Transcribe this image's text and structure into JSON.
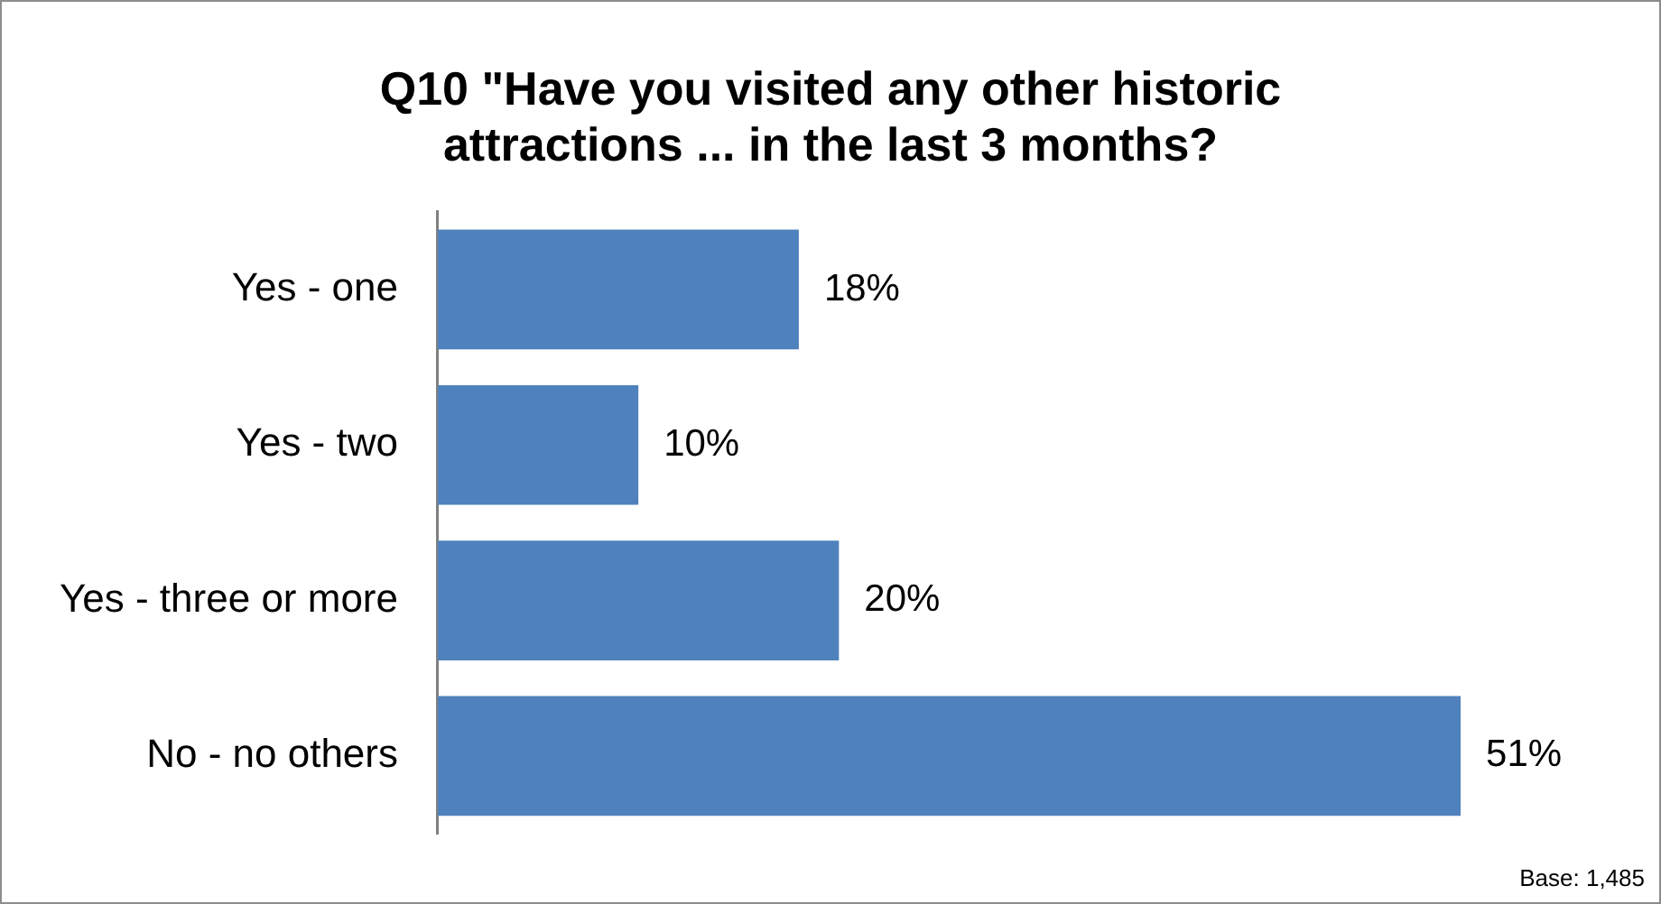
{
  "chart_data": {
    "type": "bar",
    "orientation": "horizontal",
    "title": "Q10 \"Have you visited any other historic attractions ... in the last 3 months?",
    "categories": [
      "Yes - one",
      "Yes - two",
      "Yes - three or more",
      "No - no others"
    ],
    "values": [
      18,
      10,
      20,
      51
    ],
    "value_labels": [
      "18%",
      "10%",
      "20%",
      "51%"
    ],
    "color": "#4f81bd",
    "tick_labels": "y",
    "legend": false,
    "annotations": [
      "Base: 1,485"
    ]
  }
}
